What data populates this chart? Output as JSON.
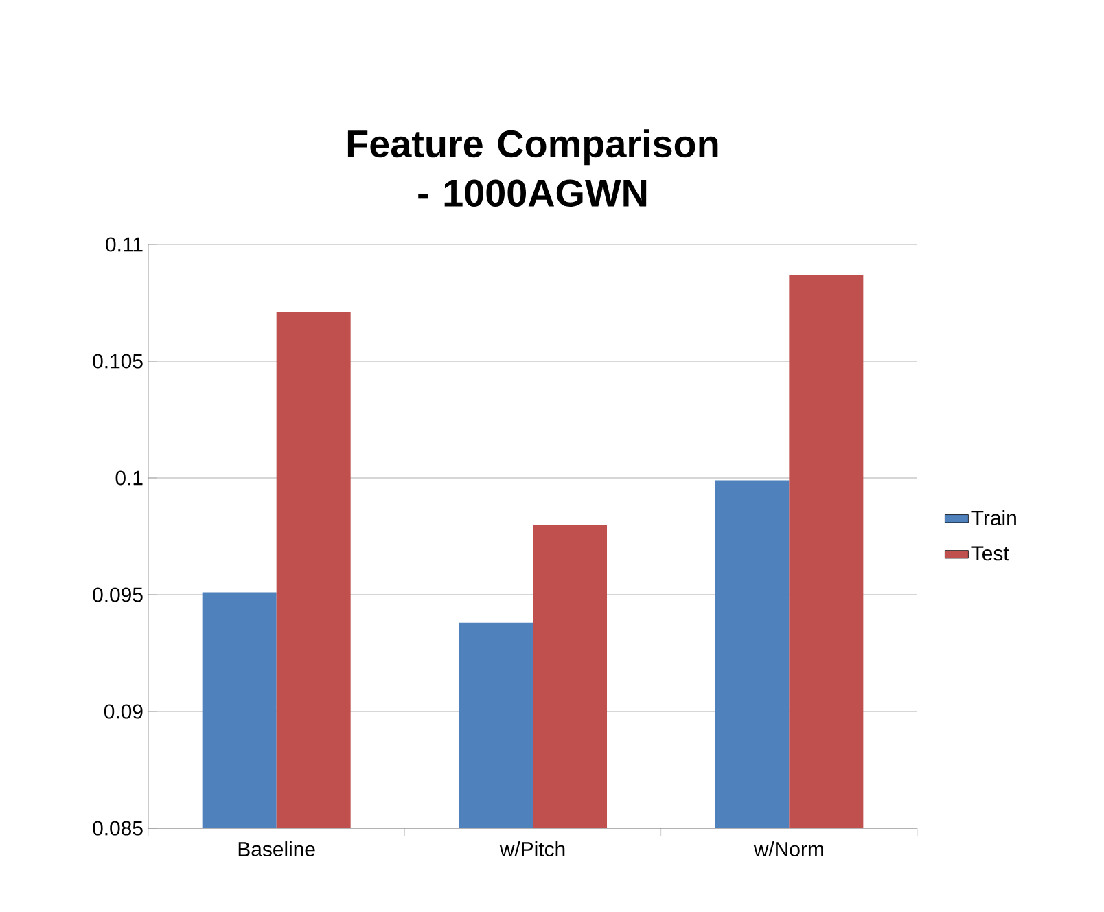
{
  "chart_data": {
    "type": "bar",
    "title": "Feature Comparison - 1000AGWN",
    "categories": [
      "Baseline",
      "w/Pitch",
      "w/Norm"
    ],
    "series": [
      {
        "name": "Train",
        "color": "#4f81bd",
        "values": [
          0.0951,
          0.0938,
          0.0999
        ]
      },
      {
        "name": "Test",
        "color": "#c0504d",
        "values": [
          0.1071,
          0.098,
          0.1087
        ]
      }
    ],
    "ylim": [
      0.085,
      0.11
    ],
    "yticks": [
      0.085,
      0.09,
      0.095,
      0.1,
      0.105,
      0.11
    ],
    "grid": "y",
    "legend": "right"
  }
}
